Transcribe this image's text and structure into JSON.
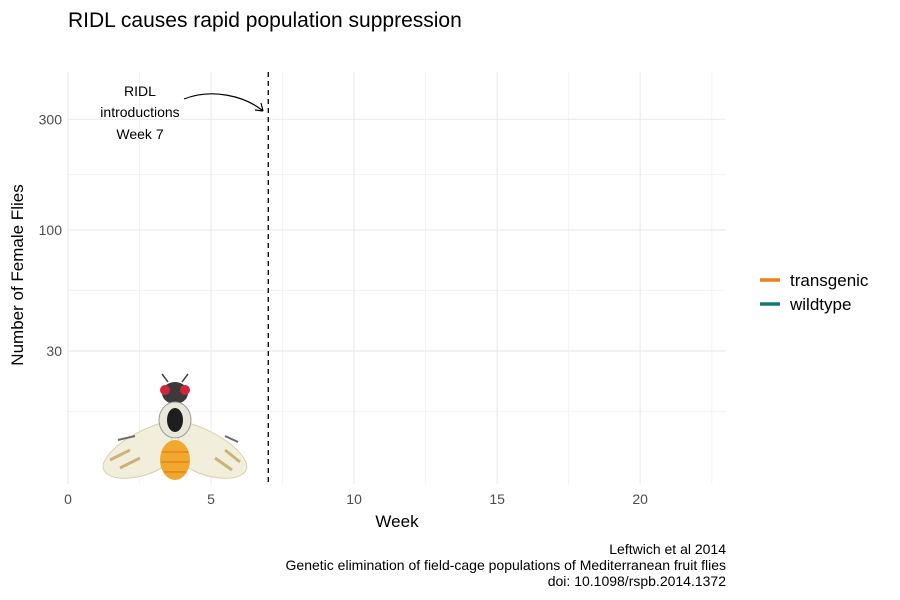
{
  "chart_data": {
    "type": "line",
    "title": "RIDL causes rapid population suppression",
    "xlabel": "Week",
    "ylabel": "Number of Female Flies",
    "x_ticks": [
      0,
      5,
      10,
      15,
      20
    ],
    "y_ticks": [
      30,
      100,
      300
    ],
    "y_scale": "log",
    "xlim": [
      0,
      23
    ],
    "ylim": [
      8,
      480
    ],
    "grid": true,
    "legend_position": "right",
    "series": [
      {
        "name": "transgenic",
        "color": "#F07F16",
        "values": []
      },
      {
        "name": "wildtype",
        "color": "#167872",
        "values": []
      }
    ],
    "vline": {
      "x": 7,
      "style": "dashed"
    },
    "annotation": {
      "lines": [
        "RIDL",
        "introductions",
        "Week 7"
      ]
    },
    "caption": [
      "Leftwich et al 2014",
      "Genetic elimination of field-cage populations of Mediterranean fruit flies",
      "doi: 10.1098/rspb.2014.1372"
    ]
  }
}
